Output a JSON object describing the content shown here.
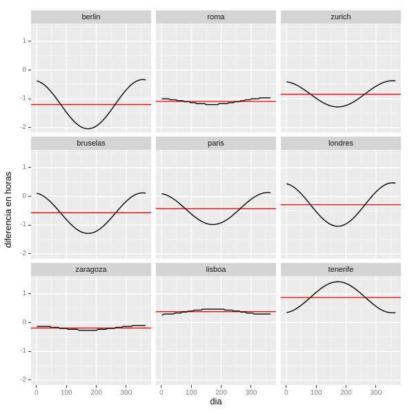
{
  "axes": {
    "y_label": "diferencia en horas",
    "x_label": "dia",
    "y_ticks": [
      1,
      0,
      -1,
      -2
    ],
    "y_minor": [
      1.5,
      0.5,
      -0.5,
      -1.5
    ],
    "x_ticks": [
      0,
      100,
      200,
      300
    ],
    "x_minor": [
      50,
      150,
      250,
      350
    ],
    "y_domain": [
      -2.17,
      1.62
    ],
    "x_domain": [
      -18.2,
      383.2
    ]
  },
  "chart_data": {
    "type": "line",
    "facet_by": "ciudad",
    "grid": "on",
    "x": {
      "label": "dia",
      "min": 1,
      "max": 365,
      "ticks": [
        0,
        100,
        200,
        300
      ]
    },
    "y": {
      "label": "diferencia en horas",
      "ticks": [
        1,
        0,
        -1,
        -2
      ]
    },
    "series_style": {
      "curve": "black seasonal cosine",
      "mean_line": "red horizontal"
    },
    "facets": [
      {
        "label": "berlin",
        "value_day1": -0.36,
        "extreme_value": -2.04,
        "extreme_day": 172,
        "value_day365": -0.33,
        "mean_line": -1.2,
        "stepped": false
      },
      {
        "label": "roma",
        "value_day1": -1.0,
        "extreme_value": -1.19,
        "extreme_day": 172,
        "value_day365": -0.97,
        "mean_line": -1.09,
        "stepped": true
      },
      {
        "label": "zurich",
        "value_day1": -0.4,
        "extreme_value": -1.28,
        "extreme_day": 172,
        "value_day365": -0.37,
        "mean_line": -0.84,
        "stepped": false
      },
      {
        "label": "bruselas",
        "value_day1": 0.12,
        "extreme_value": -1.29,
        "extreme_day": 172,
        "value_day365": 0.12,
        "mean_line": -0.57,
        "stepped": false
      },
      {
        "label": "paris",
        "value_day1": 0.1,
        "extreme_value": -0.98,
        "extreme_day": 172,
        "value_day365": 0.13,
        "mean_line": -0.43,
        "stepped": false
      },
      {
        "label": "londres",
        "value_day1": 0.45,
        "extreme_value": -1.04,
        "extreme_day": 172,
        "value_day365": 0.47,
        "mean_line": -0.29,
        "stepped": false
      },
      {
        "label": "zaragoza",
        "value_day1": -0.12,
        "extreme_value": -0.26,
        "extreme_day": 172,
        "value_day365": -0.1,
        "mean_line": -0.19,
        "stepped": true
      },
      {
        "label": "lisboa",
        "value_day1": 0.28,
        "extreme_value": 0.47,
        "extreme_day": 172,
        "value_day365": 0.29,
        "mean_line": 0.38,
        "stepped": true
      },
      {
        "label": "tenerife",
        "value_day1": 0.34,
        "extreme_value": 1.42,
        "extreme_day": 172,
        "value_day365": 0.34,
        "mean_line": 0.87,
        "stepped": false
      }
    ]
  },
  "colors": {
    "panel_bg": "#ebebeb",
    "strip_bg": "#d4d4d4",
    "grid_major": "#ffffff",
    "grid_minor": "#ffffff",
    "curve": "#000000",
    "mean_line": "#ff0000",
    "tick_label": "#7f7f7f",
    "tick_mark": "#333333",
    "axis_title": "#000000"
  }
}
